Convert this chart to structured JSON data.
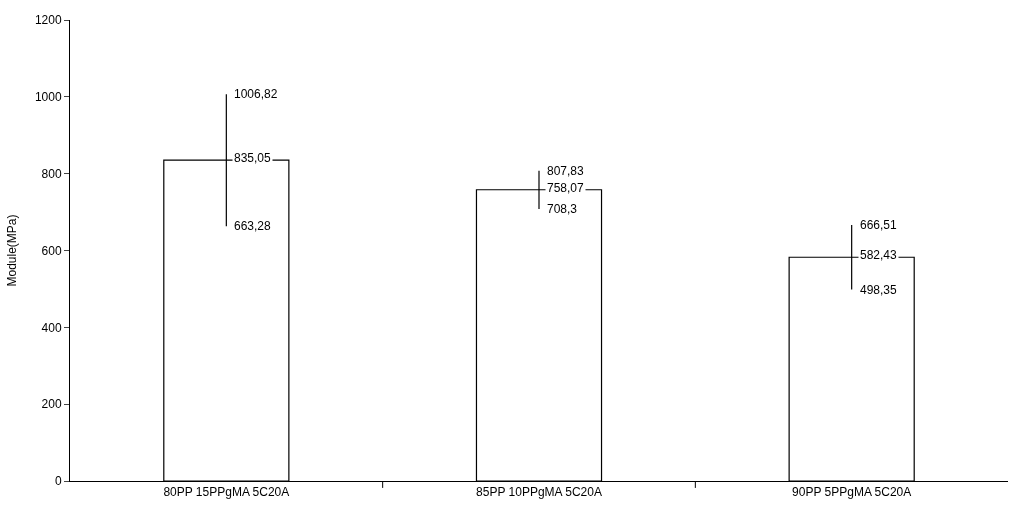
{
  "chart_data": {
    "type": "bar",
    "ylabel": "Module(MPa)",
    "categories": [
      "80PP 15PPgMA 5C20A",
      "85PP 10PPgMA 5C20A",
      "90PP 5PPgMA 5C20A"
    ],
    "values": [
      835.05,
      758.07,
      582.43
    ],
    "value_labels": [
      "835,05",
      "758,07",
      "582,43"
    ],
    "errors": [
      [
        663.28,
        1006.82
      ],
      [
        708.3,
        807.83
      ],
      [
        498.35,
        666.51
      ]
    ],
    "color": "#ffffff",
    "ylim": [
      0,
      1200
    ],
    "yticks": [
      0,
      200,
      400,
      600,
      800,
      1000,
      1200
    ],
    "annotations": [
      {
        "text": "1006,82",
        "x": "80PP 15PPgMA 5C20A",
        "y": 1006.82
      },
      {
        "text": "663,28",
        "x": "80PP 15PPgMA 5C20A",
        "y": 663.28
      },
      {
        "text": "807,83",
        "x": "85PP 10PPgMA 5C20A",
        "y": 807.83
      },
      {
        "text": "708,3",
        "x": "85PP 10PPgMA 5C20A",
        "y": 708.3
      },
      {
        "text": "666,51",
        "x": "90PP 5PPgMA 5C20A",
        "y": 666.51
      },
      {
        "text": "498,35",
        "x": "90PP 5PPgMA 5C20A",
        "y": 498.35
      }
    ],
    "grid": false,
    "legend": false
  }
}
